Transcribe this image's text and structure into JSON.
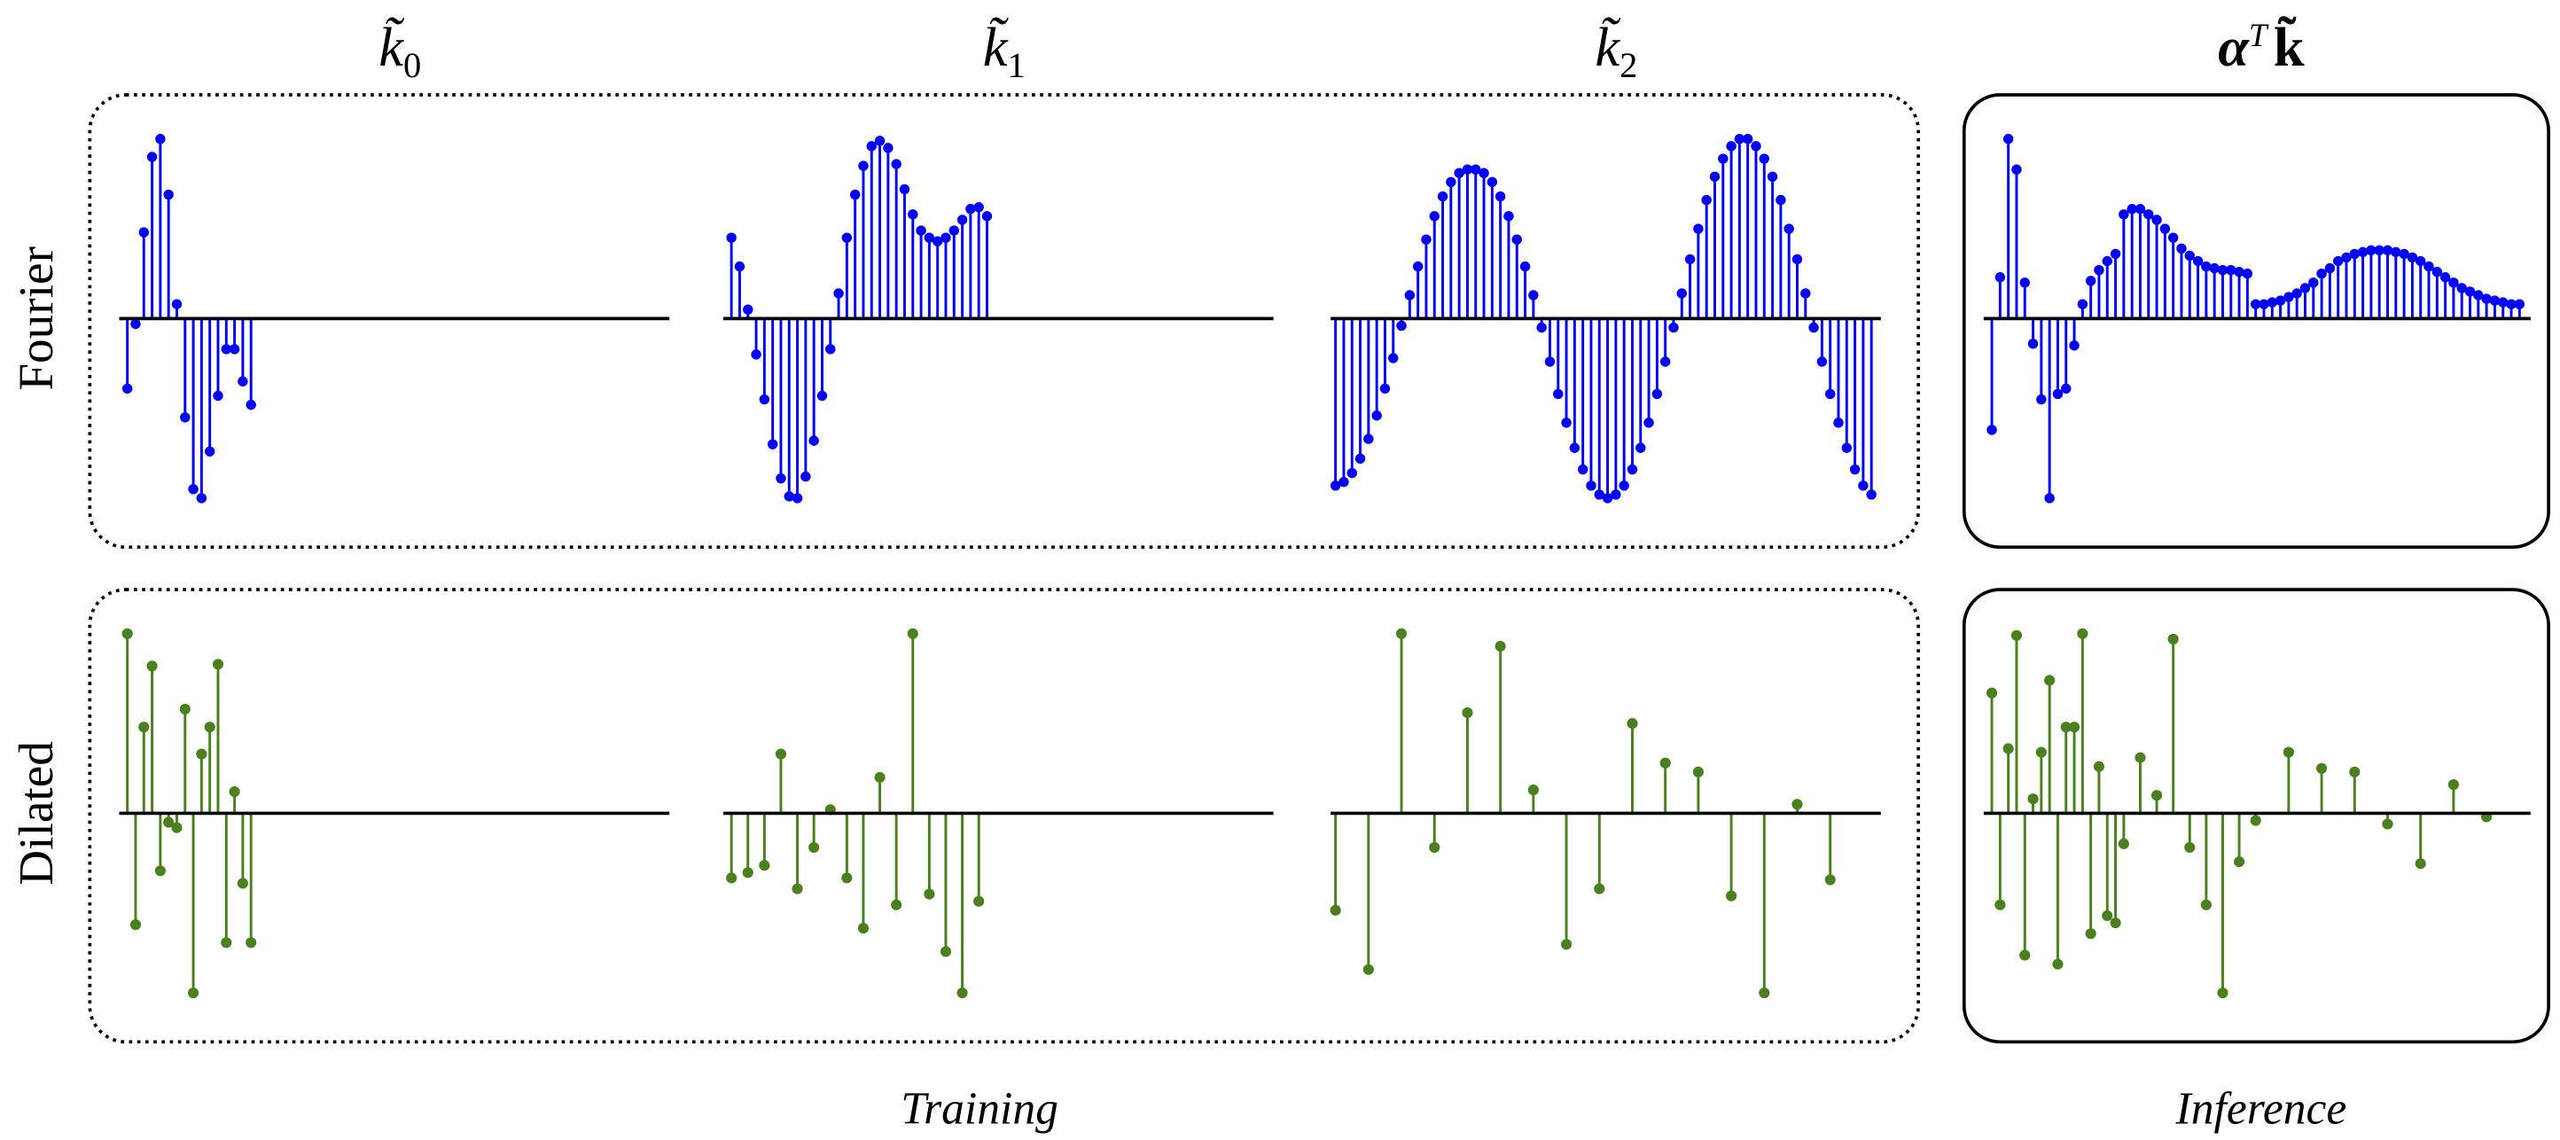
{
  "column_titles": [
    {
      "base": "k̃",
      "sub": "0"
    },
    {
      "base": "k̃",
      "sub": "1"
    },
    {
      "base": "k̃",
      "sub": "2"
    },
    {
      "base": "α",
      "sup": "T",
      "bold": "k̃"
    }
  ],
  "row_labels": [
    "Fourier",
    "Dilated"
  ],
  "group_labels": {
    "training": "Training",
    "inference": "Inference"
  },
  "colors": {
    "fourier": "#0000ff",
    "dilated": "#4a801e",
    "axis": "#000000",
    "frame": "#000000"
  },
  "frames": {
    "training": "dotted",
    "inference": "solid"
  },
  "chart_data": [
    {
      "type": "stem",
      "row": "Fourier",
      "column": 0,
      "color": "#0000ff",
      "values": [
        -0.39,
        -0.03,
        0.48,
        0.9,
        1.0,
        0.69,
        0.08,
        -0.55,
        -0.95,
        -1.0,
        -0.74,
        -0.43,
        -0.17,
        -0.17,
        -0.35,
        -0.48
      ]
    },
    {
      "type": "stem",
      "row": "Fourier",
      "column": 1,
      "color": "#0000ff",
      "values": [
        0.45,
        0.29,
        0.05,
        -0.2,
        -0.45,
        -0.7,
        -0.89,
        -0.99,
        -1.0,
        -0.88,
        -0.68,
        -0.43,
        -0.17,
        0.14,
        0.45,
        0.69,
        0.85,
        0.96,
        0.99,
        0.95,
        0.86,
        0.72,
        0.58,
        0.49,
        0.45,
        0.43,
        0.45,
        0.49,
        0.55,
        0.61,
        0.62,
        0.57
      ]
    },
    {
      "type": "stem",
      "row": "Fourier",
      "column": 2,
      "color": "#0000ff",
      "values": [
        -0.93,
        -0.91,
        -0.86,
        -0.78,
        -0.67,
        -0.54,
        -0.39,
        -0.22,
        -0.04,
        0.13,
        0.29,
        0.44,
        0.57,
        0.68,
        0.76,
        0.81,
        0.83,
        0.83,
        0.81,
        0.76,
        0.68,
        0.57,
        0.44,
        0.29,
        0.13,
        -0.05,
        -0.24,
        -0.42,
        -0.58,
        -0.72,
        -0.84,
        -0.93,
        -0.98,
        -1.0,
        -0.98,
        -0.93,
        -0.84,
        -0.72,
        -0.58,
        -0.42,
        -0.24,
        -0.05,
        0.14,
        0.33,
        0.5,
        0.66,
        0.79,
        0.89,
        0.96,
        1.0,
        1.0,
        0.96,
        0.89,
        0.79,
        0.66,
        0.5,
        0.33,
        0.14,
        -0.05,
        -0.24,
        -0.42,
        -0.58,
        -0.72,
        -0.84,
        -0.93,
        -0.98
      ]
    },
    {
      "type": "stem",
      "row": "Fourier",
      "column": 3,
      "color": "#0000ff",
      "values": [
        -0.62,
        0.23,
        1.0,
        0.83,
        0.2,
        -0.14,
        -0.45,
        -1.0,
        -0.42,
        -0.39,
        -0.15,
        0.08,
        0.21,
        0.27,
        0.32,
        0.36,
        0.58,
        0.61,
        0.61,
        0.58,
        0.55,
        0.5,
        0.45,
        0.39,
        0.35,
        0.32,
        0.29,
        0.28,
        0.27,
        0.27,
        0.26,
        0.25,
        0.08,
        0.08,
        0.09,
        0.1,
        0.12,
        0.14,
        0.17,
        0.2,
        0.25,
        0.28,
        0.32,
        0.34,
        0.36,
        0.37,
        0.38,
        0.38,
        0.38,
        0.37,
        0.36,
        0.34,
        0.32,
        0.29,
        0.26,
        0.23,
        0.2,
        0.17,
        0.15,
        0.13,
        0.11,
        0.1,
        0.09,
        0.08,
        0.08
      ]
    },
    {
      "type": "stem",
      "row": "Dilated",
      "column": 0,
      "color": "#4a801e",
      "x": [
        0,
        1,
        2,
        3,
        4,
        5,
        6,
        7,
        8,
        9,
        10,
        11,
        12,
        13,
        14,
        15
      ],
      "values": [
        1.0,
        -0.62,
        0.48,
        0.82,
        -0.32,
        -0.05,
        -0.08,
        0.58,
        -1.0,
        0.33,
        0.48,
        0.83,
        -0.72,
        0.12,
        -0.39,
        -0.72
      ]
    },
    {
      "type": "stem",
      "row": "Dilated",
      "column": 1,
      "color": "#4a801e",
      "x": [
        0,
        2,
        4,
        6,
        8,
        10,
        12,
        14,
        16,
        18,
        20,
        22,
        24,
        26,
        28,
        30
      ],
      "values": [
        -0.36,
        -0.33,
        -0.29,
        0.33,
        -0.42,
        -0.19,
        0.02,
        -0.36,
        -0.64,
        0.2,
        -0.51,
        1.0,
        -0.45,
        -0.77,
        -1.0,
        -0.49
      ]
    },
    {
      "type": "stem",
      "row": "Dilated",
      "column": 2,
      "color": "#4a801e",
      "x": [
        0,
        4,
        8,
        12,
        16,
        20,
        24,
        28,
        32,
        36,
        40,
        44,
        48,
        52,
        56,
        60
      ],
      "values": [
        -0.54,
        -0.87,
        1.0,
        -0.19,
        0.56,
        0.93,
        0.13,
        -0.73,
        -0.42,
        0.5,
        0.28,
        0.23,
        -0.46,
        -1.0,
        0.05,
        -0.37
      ]
    },
    {
      "type": "stem",
      "row": "Dilated",
      "column": 3,
      "color": "#4a801e",
      "x": [
        0,
        1,
        2,
        3,
        4,
        5,
        6,
        7,
        8,
        9,
        10,
        11,
        12,
        13,
        14,
        15,
        16,
        18,
        20,
        22,
        24,
        26,
        28,
        30,
        32,
        36,
        40,
        44,
        48,
        52,
        56,
        60
      ],
      "values": [
        0.67,
        -0.51,
        0.36,
        0.99,
        -0.79,
        0.08,
        0.34,
        0.74,
        -0.84,
        0.48,
        0.48,
        1.0,
        -0.67,
        0.26,
        -0.57,
        -0.61,
        -0.17,
        0.31,
        0.1,
        0.97,
        -0.19,
        -0.51,
        -1.0,
        -0.27,
        -0.04,
        0.34,
        0.25,
        0.23,
        -0.06,
        -0.28,
        0.16,
        -0.02
      ]
    }
  ]
}
